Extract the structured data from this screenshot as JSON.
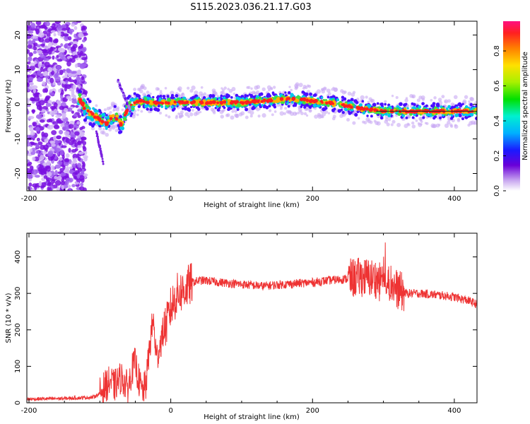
{
  "figure": {
    "title": "S115.2023.036.21.17.G03"
  },
  "chart_data": [
    {
      "type": "heatmap",
      "title": "S115.2023.036.21.17.G03",
      "xlabel": "Height of straight line (km)",
      "ylabel": "Frequency (Hz)",
      "xlim": [
        -203,
        432
      ],
      "ylim": [
        -25,
        24
      ],
      "xticks": [
        -200,
        0,
        200,
        400
      ],
      "yticks": [
        -20,
        -10,
        0,
        10,
        20
      ],
      "colorbar": {
        "label": "Normalized spectral amplitude",
        "range": [
          0,
          0.97
        ],
        "ticks": [
          0.0,
          0.2,
          0.4,
          0.6,
          0.8
        ]
      },
      "ridge_frequency_hz": {
        "x": [
          -130,
          -120,
          -110,
          -100,
          -90,
          -80,
          -70,
          -60,
          -50,
          -40,
          -30,
          -20,
          -10,
          0,
          50,
          100,
          130,
          160,
          180,
          200,
          220,
          240,
          260,
          280,
          300,
          350,
          400,
          432
        ],
        "y": [
          2.0,
          -1.5,
          -3.0,
          -4.5,
          -5.5,
          -3.0,
          -6.0,
          -1.0,
          0.5,
          1.0,
          0.5,
          0.5,
          0.5,
          0.5,
          0.5,
          0.5,
          1.0,
          1.5,
          1.5,
          1.0,
          0.5,
          0.0,
          -1.0,
          -1.5,
          -2.0,
          -2.0,
          -2.0,
          -2.0
        ]
      },
      "noise_region_x": [
        -203,
        -130
      ],
      "grid": false
    },
    {
      "type": "line",
      "xlabel": "Height of straight line (km)",
      "ylabel": "SNR (10 * v/v)",
      "xlim": [
        -203,
        432
      ],
      "ylim": [
        0,
        465
      ],
      "xticks": [
        -200,
        0,
        200,
        400
      ],
      "yticks": [
        0,
        100,
        200,
        300,
        400
      ],
      "color": "#ee3333",
      "grid": false,
      "x": [
        -203,
        -150,
        -110,
        -100,
        -95,
        -85,
        -80,
        -70,
        -60,
        -55,
        -50,
        -45,
        -40,
        -35,
        -30,
        -25,
        -20,
        -15,
        -10,
        -5,
        0,
        10,
        20,
        30,
        40,
        50,
        70,
        100,
        130,
        160,
        200,
        220,
        250,
        270,
        290,
        300,
        310,
        320,
        330,
        350,
        380,
        400,
        420,
        432
      ],
      "y": [
        10,
        12,
        15,
        25,
        40,
        60,
        45,
        70,
        40,
        90,
        110,
        60,
        30,
        50,
        150,
        230,
        120,
        160,
        200,
        220,
        260,
        300,
        310,
        330,
        335,
        335,
        330,
        325,
        320,
        325,
        330,
        335,
        340,
        345,
        340,
        320,
        330,
        310,
        300,
        300,
        295,
        290,
        280,
        270
      ]
    }
  ]
}
